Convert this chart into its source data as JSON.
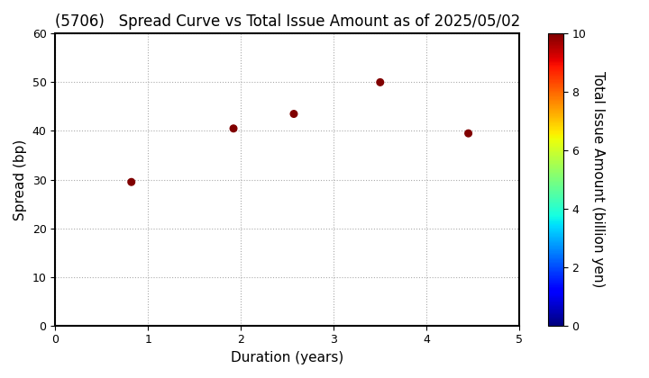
{
  "title": "(5706)   Spread Curve vs Total Issue Amount as of 2025/05/02",
  "xlabel": "Duration (years)",
  "ylabel": "Spread (bp)",
  "colorbar_label": "Total Issue Amount (billion yen)",
  "xlim": [
    0,
    5
  ],
  "ylim": [
    0,
    60
  ],
  "xticks": [
    0,
    1,
    2,
    3,
    4,
    5
  ],
  "yticks": [
    0,
    10,
    20,
    30,
    40,
    50,
    60
  ],
  "points": [
    {
      "duration": 0.82,
      "spread": 29.5,
      "amount": 10.0
    },
    {
      "duration": 1.92,
      "spread": 40.5,
      "amount": 10.0
    },
    {
      "duration": 2.57,
      "spread": 43.5,
      "amount": 10.0
    },
    {
      "duration": 3.5,
      "spread": 50.0,
      "amount": 10.0
    },
    {
      "duration": 4.45,
      "spread": 39.5,
      "amount": 10.0
    }
  ],
  "colormap": "jet",
  "color_vmin": 0,
  "color_vmax": 10,
  "colorbar_ticks": [
    0,
    2,
    4,
    6,
    8,
    10
  ],
  "marker_size": 30,
  "grid_color": "#aaaaaa",
  "grid_linestyle": "dotted",
  "background_color": "#ffffff",
  "title_fontsize": 12,
  "axis_label_fontsize": 11,
  "spine_linewidth": 1.5,
  "spine_color": "#000000"
}
